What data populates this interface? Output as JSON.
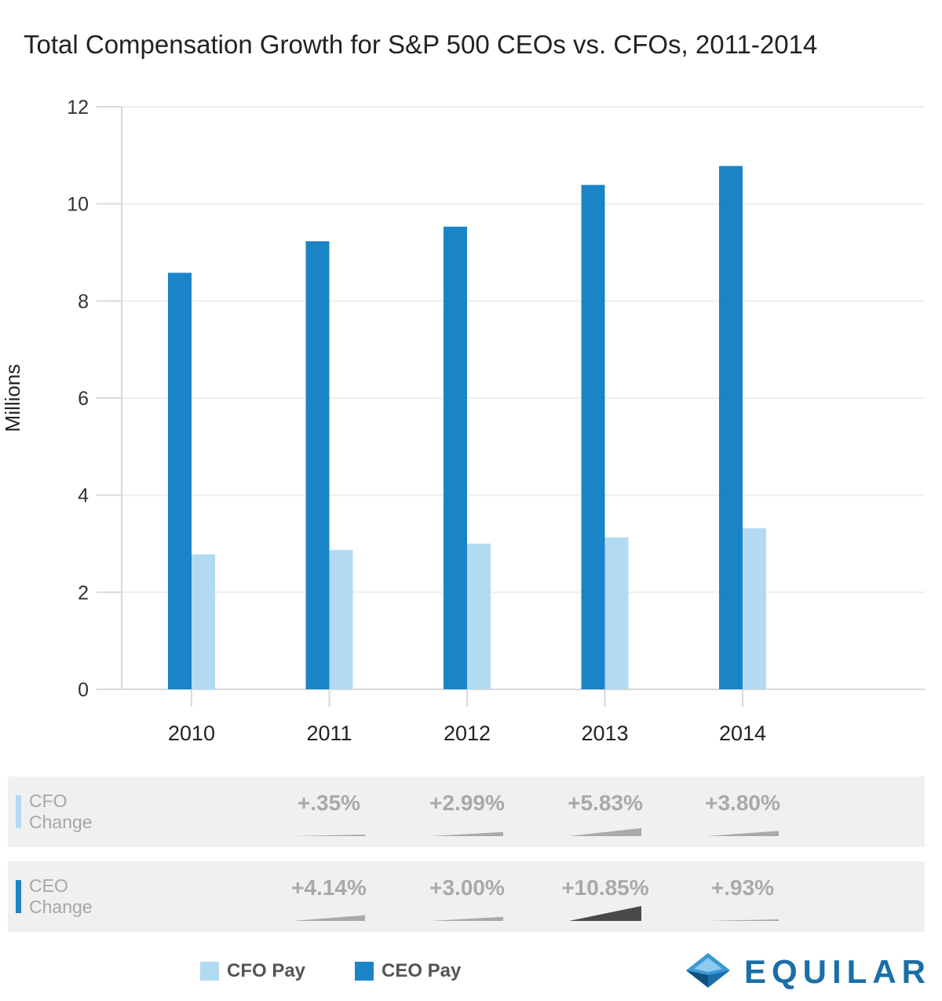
{
  "chart_data": {
    "type": "bar",
    "title": "Total Compensation Growth for S&P 500 CEOs vs. CFOs, 2011-2014",
    "ylabel": "Millions",
    "xlabel": "",
    "ylim": [
      0,
      12
    ],
    "yticks": [
      0,
      2,
      4,
      6,
      8,
      10,
      12
    ],
    "grid": true,
    "categories": [
      "2010",
      "2011",
      "2012",
      "2013",
      "2014"
    ],
    "series": [
      {
        "name": "CEO Pay",
        "color": "#1b84c7",
        "values": [
          8.58,
          9.23,
          9.53,
          10.39,
          10.78
        ]
      },
      {
        "name": "CFO Pay",
        "color": "#b3daf3",
        "values": [
          2.78,
          2.87,
          3.0,
          3.13,
          3.32
        ]
      }
    ],
    "legend": {
      "placement": "bottom-left"
    }
  },
  "change_table": {
    "rows": [
      {
        "label_line1": "CFO",
        "label_line2": "Change",
        "color": "#b3daf3",
        "values": [
          "+.35%",
          "+2.99%",
          "+5.83%",
          "+3.80%"
        ],
        "magnitudes": [
          0.35,
          2.99,
          5.83,
          3.8
        ]
      },
      {
        "label_line1": "CEO",
        "label_line2": "Change",
        "color": "#1b84c7",
        "values": [
          "+4.14%",
          "+3.00%",
          "+10.85%",
          "+.93%"
        ],
        "magnitudes": [
          4.14,
          3.0,
          10.85,
          0.93
        ]
      }
    ]
  },
  "logo": {
    "text": "EQUILAR"
  }
}
